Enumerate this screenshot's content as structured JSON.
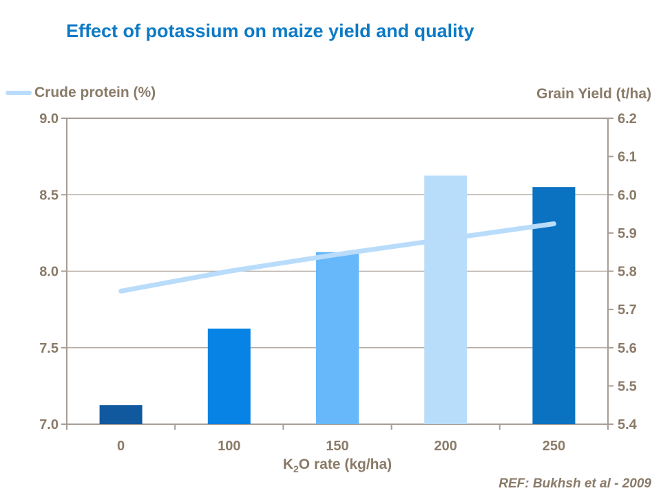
{
  "title": "Effect of potassium on maize yield and quality",
  "footer": {
    "ref": "REF:  Bukhsh et al - 2009"
  },
  "chart_data": {
    "type": "combo-bar-line",
    "title": "Effect of potassium on maize yield and quality",
    "categories": [
      "0",
      "100",
      "150",
      "200",
      "250"
    ],
    "x_axis": {
      "label_prefix": "K",
      "label_sub": "2",
      "label_suffix": "O rate (kg/ha)"
    },
    "left_axis": {
      "label": "Crude protein (%)",
      "min": 7.0,
      "max": 9.0,
      "tick_labels": [
        "9.0",
        "8.5",
        "8.0",
        "7.5",
        "7.0"
      ],
      "tick_values": [
        9.0,
        8.5,
        8.0,
        7.5,
        7.0
      ]
    },
    "right_axis": {
      "label": "Grain Yield (t/ha)",
      "min": 5.4,
      "max": 6.2,
      "tick_labels": [
        "6.2",
        "6.1",
        "6.0",
        "5.9",
        "5.8",
        "5.7",
        "5.6",
        "5.5",
        "5.4"
      ],
      "tick_values": [
        6.2,
        6.1,
        6.0,
        5.9,
        5.8,
        5.7,
        5.6,
        5.5,
        5.4
      ]
    },
    "series": [
      {
        "name": "Grain Yield (t/ha)",
        "type": "bar",
        "axis": "right",
        "values": [
          5.45,
          5.65,
          5.85,
          6.05,
          6.02
        ],
        "bar_colors": [
          "#10599f",
          "#0783e5",
          "#66b8fa",
          "#b8ddfb",
          "#0b72c2"
        ]
      },
      {
        "name": "Crude protein (%)",
        "type": "line",
        "axis": "left",
        "values": [
          7.87,
          8.0,
          8.11,
          8.21,
          8.31
        ],
        "color": "#b9dcfb"
      }
    ],
    "legend_position": "top-left",
    "grid": "horizontal",
    "colors": {
      "title": "#0d7ac5",
      "text": "#8a7a68",
      "border": "#a79d94",
      "grid": "#b4aba3"
    }
  }
}
